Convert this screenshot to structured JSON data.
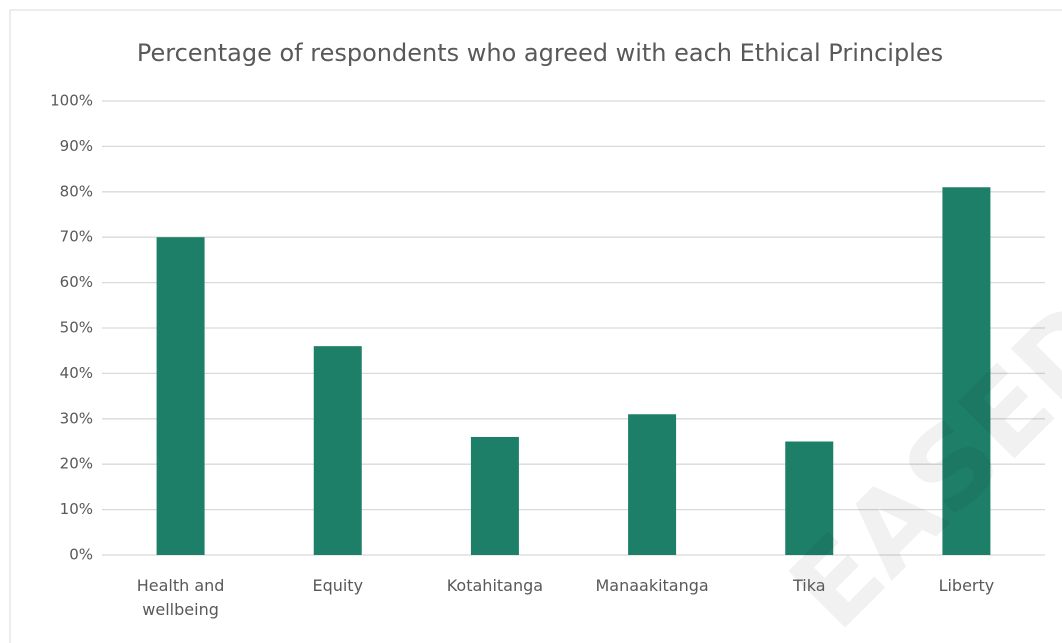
{
  "chart_data": {
    "type": "bar",
    "title": "Percentage of respondents who agreed with each Ethical Principles",
    "categories": [
      "Health and wellbeing",
      "Equity",
      "Kotahitanga",
      "Manaakitanga",
      "Tika",
      "Liberty"
    ],
    "values": [
      70,
      46,
      26,
      31,
      25,
      81
    ],
    "color": "#1e7f68",
    "ylim": [
      0,
      100
    ],
    "yticks": [
      {
        "value": 0,
        "label": "0%"
      },
      {
        "value": 10,
        "label": "10%"
      },
      {
        "value": 20,
        "label": "20%"
      },
      {
        "value": 30,
        "label": "30%"
      },
      {
        "value": 40,
        "label": "40%"
      },
      {
        "value": 50,
        "label": "50%"
      },
      {
        "value": 60,
        "label": "60%"
      },
      {
        "value": 70,
        "label": "70%"
      },
      {
        "value": 80,
        "label": "80%"
      },
      {
        "value": 90,
        "label": "90%"
      },
      {
        "value": 100,
        "label": "100%"
      }
    ],
    "grid": true,
    "watermark": "EASED"
  }
}
